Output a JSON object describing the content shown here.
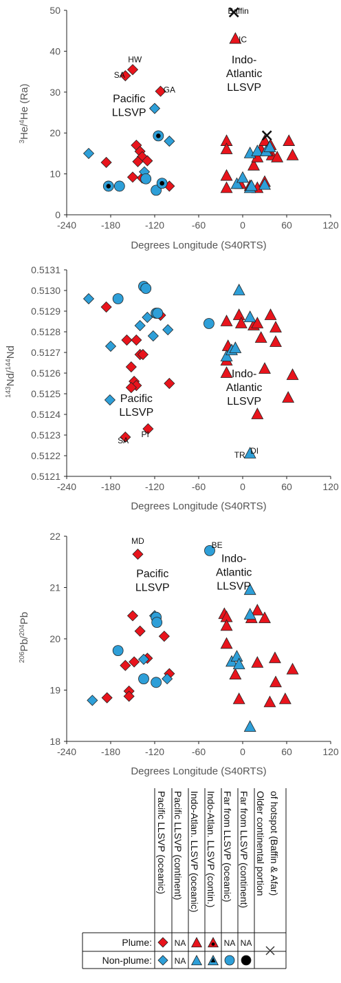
{
  "colors": {
    "plume": "#e8141c",
    "nonplume": "#2e9fd8",
    "black": "#000000",
    "axis": "#222222",
    "label": "#555555"
  },
  "chart_data": [
    {
      "id": "he",
      "type": "scatter",
      "ylabel_sup1": "3",
      "ylabel_mid": "He/",
      "ylabel_sup2": "4",
      "ylabel_end": "He (Ra)",
      "xlabel": "Degrees Longitude (S40RTS)",
      "xlim": [
        -240,
        120
      ],
      "ylim": [
        0,
        50
      ],
      "xticks": [
        -240,
        -180,
        -120,
        -60,
        0,
        60,
        120
      ],
      "yticks": [
        0,
        10,
        20,
        30,
        40,
        50
      ],
      "region_labels": [
        {
          "lines": [
            "Pacific",
            "LLSVP"
          ],
          "x": -155,
          "y": 27.5
        },
        {
          "lines": [
            "Indo-",
            "Atlantic",
            "LLSVP"
          ],
          "x": 2,
          "y": 37
        }
      ],
      "point_labels": [
        {
          "text": "HW",
          "x": -147,
          "y": 37.3
        },
        {
          "text": "SA",
          "x": -168,
          "y": 33.5
        },
        {
          "text": "GA",
          "x": -100,
          "y": 29.9
        },
        {
          "text": "IC",
          "x": 0,
          "y": 42.2
        },
        {
          "text": "Baffin",
          "x": -6,
          "y": 49.2
        }
      ],
      "series": [
        {
          "kind": "pac-plume",
          "marker": "diamond",
          "points": [
            [
              -160,
              34
            ],
            [
              -150,
              35.5
            ],
            [
              -112,
              30.2
            ],
            [
              -145,
              17
            ],
            [
              -140,
              15.5
            ],
            [
              -137,
              14.2
            ],
            [
              -130,
              13.2
            ],
            [
              -143,
              13
            ],
            [
              -186,
              12.8
            ],
            [
              -150,
              9.2
            ],
            [
              -137,
              9
            ],
            [
              -100,
              7
            ]
          ]
        },
        {
          "kind": "pac-nonplume",
          "marker": "diamond",
          "points": [
            [
              -210,
              15
            ],
            [
              -120,
              26
            ],
            [
              -100,
              18
            ],
            [
              -134,
              10.5
            ]
          ]
        },
        {
          "kind": "far-oceanic",
          "marker": "circle",
          "points": [
            [
              -183,
              7
            ],
            [
              -168,
              7
            ],
            [
              -132,
              8.8
            ],
            [
              -118,
              6
            ],
            [
              -110,
              7.7
            ],
            [
              -115,
              19.3
            ]
          ]
        },
        {
          "kind": "far-ocean-dot",
          "marker": "dot",
          "points": [
            [
              -183,
              7
            ],
            [
              -115,
              19.3
            ],
            [
              -110,
              7.7
            ]
          ]
        },
        {
          "kind": "ia-plume",
          "marker": "triangle",
          "points": [
            [
              -10,
              43
            ],
            [
              -22,
              18
            ],
            [
              -22,
              16
            ],
            [
              -22,
              9.5
            ],
            [
              -22,
              6.5
            ],
            [
              -3,
              7.5
            ],
            [
              10,
              7
            ],
            [
              20,
              6.5
            ],
            [
              15,
              12
            ],
            [
              20,
              14
            ],
            [
              25,
              16
            ],
            [
              30,
              8
            ],
            [
              30,
              18
            ],
            [
              38,
              17
            ],
            [
              40,
              14.5
            ],
            [
              47,
              14
            ],
            [
              63,
              18
            ],
            [
              68,
              14.5
            ]
          ]
        },
        {
          "kind": "ia-continental",
          "marker": "triangle-dot",
          "points": [
            [
              34,
              15.5
            ]
          ]
        },
        {
          "kind": "ia-nonplume",
          "marker": "triangle",
          "points": [
            [
              -8,
              7.5
            ],
            [
              0,
              9
            ],
            [
              10,
              15
            ],
            [
              10,
              6.5
            ],
            [
              12,
              7
            ],
            [
              20,
              15.5
            ],
            [
              30,
              7.3
            ],
            [
              32,
              15.5
            ],
            [
              37,
              16.5
            ]
          ]
        },
        {
          "kind": "older-continental",
          "marker": "cross",
          "points": [
            [
              -12,
              49.5
            ],
            [
              33,
              19.4
            ]
          ]
        }
      ]
    },
    {
      "id": "nd",
      "type": "scatter",
      "ylabel_sup1": "143",
      "ylabel_mid": "Nd/",
      "ylabel_sup2": "144",
      "ylabel_end": "Nd",
      "xlabel": "Degrees Longitude (S40RTS)",
      "xlim": [
        -240,
        120
      ],
      "ylim": [
        0.5121,
        0.5131
      ],
      "xticks": [
        -240,
        -180,
        -120,
        -60,
        0,
        60,
        120
      ],
      "yticks": [
        "0.5121",
        "0.5122",
        "0.5123",
        "0.5124",
        "0.5125",
        "0.5126",
        "0.5127",
        "0.5128",
        "0.5129",
        "0.5130",
        "0.5131"
      ],
      "region_labels": [
        {
          "lines": [
            "Pacific",
            "LLSVP"
          ],
          "x": -145,
          "y": 0.51246
        },
        {
          "lines": [
            "Indo-",
            "Atlantic",
            "LLSVP"
          ],
          "x": 2,
          "y": 0.51258
        }
      ],
      "point_labels": [
        {
          "text": "SA",
          "x": -163,
          "y": 0.51226
        },
        {
          "text": "PI",
          "x": -133,
          "y": 0.51229
        },
        {
          "text": "DI",
          "x": 16,
          "y": 0.51221
        },
        {
          "text": "TR",
          "x": -4,
          "y": 0.51219
        }
      ],
      "series": [
        {
          "kind": "pac-plume",
          "marker": "diamond",
          "points": [
            [
              -186,
              0.51292
            ],
            [
              -158,
              0.51276
            ],
            [
              -145,
              0.51276
            ],
            [
              -140,
              0.51269
            ],
            [
              -136,
              0.51269
            ],
            [
              -112,
              0.51288
            ],
            [
              -152,
              0.51263
            ],
            [
              -148,
              0.51256
            ],
            [
              -145,
              0.51254
            ],
            [
              -152,
              0.51253
            ],
            [
              -100,
              0.51255
            ],
            [
              -160,
              0.51229
            ],
            [
              -129,
              0.51233
            ]
          ]
        },
        {
          "kind": "pac-nonplume",
          "marker": "diamond",
          "points": [
            [
              -210,
              0.51296
            ],
            [
              -180,
              0.51273
            ],
            [
              -140,
              0.51283
            ],
            [
              -130,
              0.51287
            ],
            [
              -122,
              0.51278
            ],
            [
              -102,
              0.51281
            ],
            [
              -181,
              0.51247
            ]
          ]
        },
        {
          "kind": "far-oceanic",
          "marker": "circle",
          "points": [
            [
              -170,
              0.51296
            ],
            [
              -135,
              0.51302
            ],
            [
              -132,
              0.51301
            ],
            [
              -118,
              0.51289
            ],
            [
              -116,
              0.51289
            ],
            [
              -46,
              0.51284
            ]
          ]
        },
        {
          "kind": "ia-plume",
          "marker": "triangle",
          "points": [
            [
              -22,
              0.51285
            ],
            [
              -20,
              0.51273
            ],
            [
              -22,
              0.51266
            ],
            [
              -22,
              0.5126
            ],
            [
              -5,
              0.51288
            ],
            [
              -2,
              0.51284
            ],
            [
              15,
              0.51283
            ],
            [
              20,
              0.51284
            ],
            [
              25,
              0.51277
            ],
            [
              38,
              0.51288
            ],
            [
              45,
              0.51282
            ],
            [
              45,
              0.51275
            ],
            [
              30,
              0.51262
            ],
            [
              68,
              0.51259
            ],
            [
              62,
              0.51248
            ],
            [
              20,
              0.5124
            ]
          ]
        },
        {
          "kind": "ia-nonplume",
          "marker": "triangle",
          "points": [
            [
              -22,
              0.51268
            ],
            [
              -15,
              0.51271
            ],
            [
              -10,
              0.51272
            ],
            [
              -5,
              0.513
            ],
            [
              10,
              0.51287
            ],
            [
              10,
              0.51221
            ]
          ]
        }
      ]
    },
    {
      "id": "pb",
      "type": "scatter",
      "ylabel_sup1": "206",
      "ylabel_mid": "Pb/",
      "ylabel_sup2": "204",
      "ylabel_end": "Pb",
      "xlabel": "Degrees Longitude (S40RTS)",
      "xlim": [
        -240,
        120
      ],
      "ylim": [
        18,
        22
      ],
      "xticks": [
        -240,
        -180,
        -120,
        -60,
        0,
        60,
        120
      ],
      "yticks": [
        18,
        19,
        20,
        21,
        22
      ],
      "region_labels": [
        {
          "lines": [
            "Pacific",
            "LLSVP"
          ],
          "x": -123,
          "y": 21.2
        },
        {
          "lines": [
            "Indo-",
            "Atlantic",
            "LLSVP"
          ],
          "x": -12,
          "y": 21.5
        }
      ],
      "point_labels": [
        {
          "text": "MD",
          "x": -143,
          "y": 21.85
        },
        {
          "text": "BE",
          "x": -35,
          "y": 21.77
        }
      ],
      "series": [
        {
          "kind": "pac-plume",
          "marker": "diamond",
          "points": [
            [
              -143,
              21.65
            ],
            [
              -150,
              20.45
            ],
            [
              -140,
              20.15
            ],
            [
              -107,
              20.05
            ],
            [
              -160,
              19.48
            ],
            [
              -148,
              19.55
            ],
            [
              -130,
              19.62
            ],
            [
              -100,
              19.32
            ],
            [
              -155,
              18.98
            ],
            [
              -155,
              18.88
            ],
            [
              -185,
              18.85
            ]
          ]
        },
        {
          "kind": "pac-nonplume",
          "marker": "diamond",
          "points": [
            [
              -205,
              18.8
            ],
            [
              -135,
              19.6
            ],
            [
              -103,
              19.22
            ],
            [
              -120,
              20.45
            ]
          ]
        },
        {
          "kind": "far-oceanic",
          "marker": "circle",
          "points": [
            [
              -170,
              19.77
            ],
            [
              -118,
              20.42
            ],
            [
              -117,
              20.32
            ],
            [
              -135,
              19.22
            ],
            [
              -118,
              19.15
            ],
            [
              -45,
              21.72
            ]
          ]
        },
        {
          "kind": "ia-plume",
          "marker": "triangle",
          "points": [
            [
              -25,
              20.48
            ],
            [
              -22,
              20.42
            ],
            [
              -22,
              20.25
            ],
            [
              -22,
              19.9
            ],
            [
              -10,
              19.3
            ],
            [
              -5,
              18.82
            ],
            [
              12,
              20.4
            ],
            [
              20,
              20.55
            ],
            [
              30,
              20.4
            ],
            [
              20,
              19.53
            ],
            [
              44,
              19.62
            ],
            [
              45,
              19.15
            ],
            [
              37,
              18.76
            ],
            [
              58,
              18.82
            ],
            [
              68,
              19.4
            ]
          ]
        },
        {
          "kind": "ia-nonplume",
          "marker": "triangle",
          "points": [
            [
              10,
              20.95
            ],
            [
              10,
              20.47
            ],
            [
              -15,
              19.55
            ],
            [
              -8,
              19.65
            ],
            [
              -5,
              19.5
            ],
            [
              10,
              18.28
            ]
          ]
        }
      ]
    }
  ],
  "legend": {
    "columns": [
      "Pacific LLSVP (oceanic)",
      "Pacific LLSVP (continent)",
      "Indo-Atlan. LLSVP (oceanic)",
      "Indo-Atlan. LLSVP (contin.)",
      "Far from LLSVP (oceanic)",
      "Far from LLSVP (continent)",
      "Older continental portion",
      "of hotspot (Baffin & Afar)"
    ],
    "row_labels": [
      "Plume:",
      "Non-plume:"
    ],
    "na": "NA"
  }
}
